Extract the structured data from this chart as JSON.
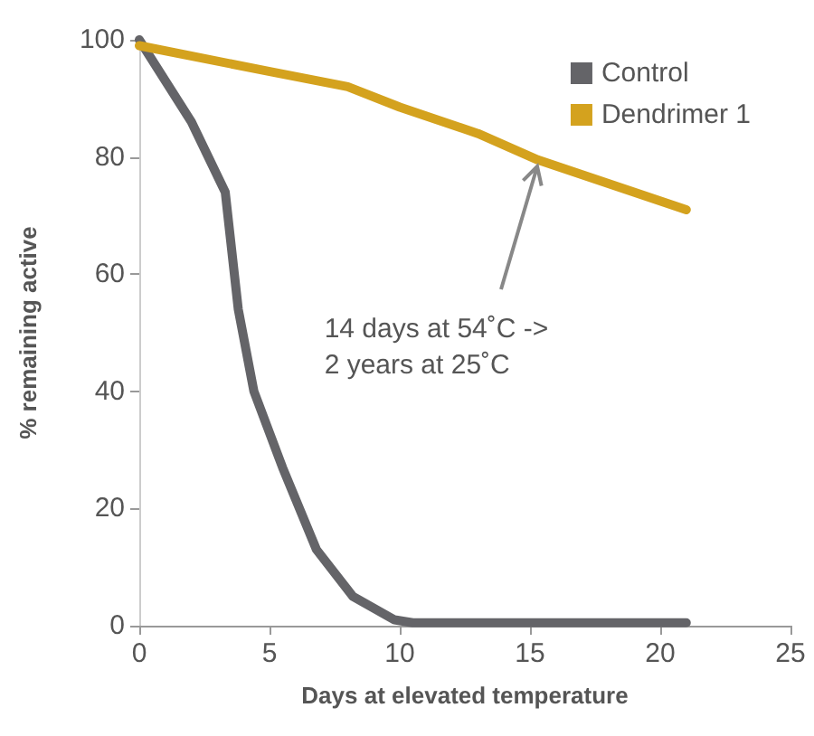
{
  "chart_data": {
    "type": "line",
    "xlabel": "Days at elevated temperature",
    "ylabel": "% remaining active",
    "xlim": [
      0,
      25
    ],
    "xticks": [
      0,
      5,
      10,
      15,
      20,
      25
    ],
    "ylim": [
      0,
      100
    ],
    "yticks": [
      0,
      20,
      40,
      60,
      80,
      100
    ],
    "grid": false,
    "legend": "top right",
    "marker": "none",
    "line_style": "solid",
    "series": [
      {
        "name": "Control",
        "color": "#646468",
        "x": [
          0,
          2,
          3.3,
          3.8,
          4.4,
          5.5,
          6.8,
          8.2,
          9.8,
          10.5,
          21
        ],
        "values": [
          100,
          86,
          74,
          54,
          40,
          27,
          13,
          5,
          1,
          0.5,
          0.5
        ]
      },
      {
        "name": "Dendrimer 1",
        "color": "#d4a21e",
        "x": [
          0,
          5.1,
          8,
          10,
          13,
          15.3,
          21
        ],
        "values": [
          99,
          94.5,
          92,
          88.5,
          84,
          79.5,
          71
        ]
      }
    ],
    "annotations": [
      {
        "text": "14 days at 54˚C ->\n2 years at 25˚C",
        "x": 15.3,
        "y": 79
      }
    ]
  }
}
